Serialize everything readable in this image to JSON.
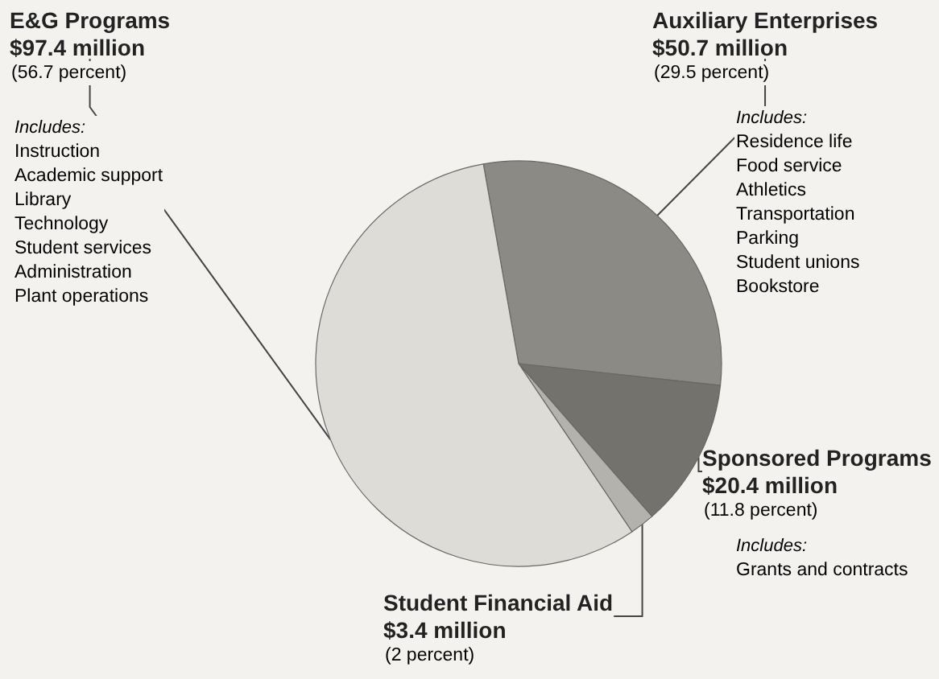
{
  "chart_data": {
    "type": "pie",
    "categories": [
      "Auxiliary Enterprises",
      "Sponsored Programs",
      "Student Financial Aid",
      "E&G Programs"
    ],
    "values": [
      50.7,
      20.4,
      3.4,
      97.4
    ],
    "colors": [
      "#8c8a85",
      "#74726d",
      "#b4b2ad",
      "#dddcd7"
    ],
    "value_labels": [
      "$50.7 million",
      "$20.4 million",
      "$3.4 million",
      "$97.4 million"
    ],
    "annotations": [
      "(29.5 percent)",
      "(11.8 percent)",
      "(2 percent)",
      "(56.7 percent)",
      "Includes:\nResidence life\nFood service\nAthletics\nTransportation\nParking\nStudent unions\nBookstore",
      "Includes:\nGrants and contracts",
      "Includes:\nInstruction\nAcademic support\nLibrary\nTechnology\nStudent services\nAdministration\nPlant operations"
    ]
  }
}
